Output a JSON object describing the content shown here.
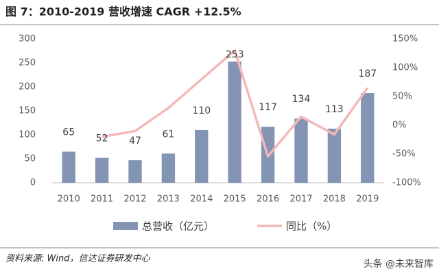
{
  "chart_data": {
    "type": "bar-line",
    "title": "图 7：2010-2019 营收增速  CAGR +12.5%",
    "source": "资料来源: Wind，信达证券研发中心",
    "watermark": "头条 @未来智库",
    "categories": [
      "2010",
      "2011",
      "2012",
      "2013",
      "2014",
      "2015",
      "2016",
      "2017",
      "2018",
      "2019"
    ],
    "series": [
      {
        "name": "总营收（亿元）",
        "type": "bar",
        "color": "#8494b4",
        "values": [
          65,
          52,
          47,
          61,
          110,
          253,
          117,
          134,
          113,
          187
        ]
      },
      {
        "name": "同比（%）",
        "type": "line",
        "axis": "y2",
        "color": "#f4b8b8",
        "values": [
          null,
          -20,
          -10,
          30,
          80,
          130,
          -54,
          15,
          -16,
          65
        ]
      }
    ],
    "ylim": [
      0,
      300
    ],
    "yticks": [
      0,
      50,
      100,
      150,
      200,
      250,
      300
    ],
    "y2lim": [
      -100,
      150
    ],
    "y2ticks": [
      {
        "value": -100,
        "label": "-100%"
      },
      {
        "value": -50,
        "label": "-50%"
      },
      {
        "value": 0,
        "label": "0%"
      },
      {
        "value": 50,
        "label": "50%"
      },
      {
        "value": 100,
        "label": "100%"
      },
      {
        "value": 150,
        "label": "150%"
      }
    ],
    "legend": "bottom"
  }
}
